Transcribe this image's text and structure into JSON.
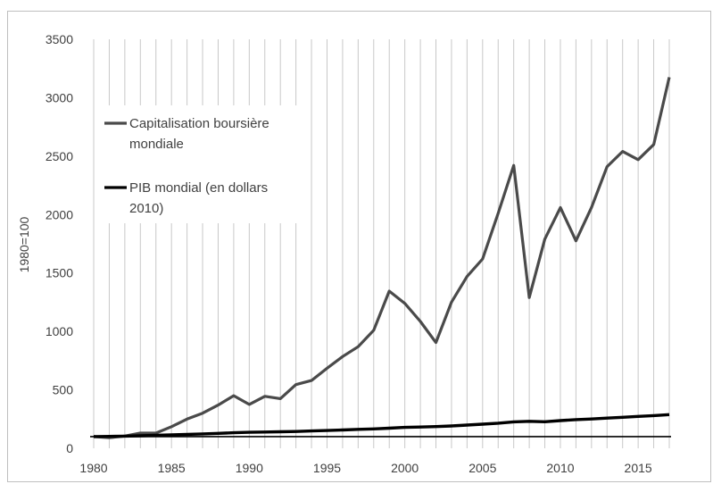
{
  "chart_data": {
    "type": "line",
    "title": "",
    "xlabel": "",
    "ylabel": "1980=100",
    "xlim": [
      1980,
      2017
    ],
    "ylim": [
      0,
      3500
    ],
    "xticks": [
      1980,
      1985,
      1990,
      1995,
      2000,
      2005,
      2010,
      2015
    ],
    "yticks": [
      0,
      500,
      1000,
      1500,
      2000,
      2500,
      3000,
      3500
    ],
    "grid": "vertical-yearly",
    "legend_position": "top-left",
    "x": [
      1980,
      1981,
      1982,
      1983,
      1984,
      1985,
      1986,
      1987,
      1988,
      1989,
      1990,
      1991,
      1992,
      1993,
      1994,
      1995,
      1996,
      1997,
      1998,
      1999,
      2000,
      2001,
      2002,
      2003,
      2004,
      2005,
      2006,
      2007,
      2008,
      2009,
      2010,
      2011,
      2012,
      2013,
      2014,
      2015,
      2016,
      2017
    ],
    "series": [
      {
        "name_lines": [
          "Capitalisation boursière",
          "mondiale"
        ],
        "color": "#4a4a4a",
        "values": [
          100,
          90,
          105,
          130,
          130,
          185,
          250,
          300,
          370,
          450,
          375,
          445,
          425,
          545,
          580,
          685,
          785,
          870,
          1010,
          1345,
          1240,
          1085,
          905,
          1250,
          1470,
          1620,
          2010,
          2420,
          1290,
          1790,
          2060,
          1775,
          2060,
          2410,
          2540,
          2470,
          2600,
          3175
        ]
      },
      {
        "name_lines": [
          "PIB mondial (en dollars",
          "2010)"
        ],
        "color": "#000000",
        "values": [
          100,
          102,
          104,
          107,
          111,
          115,
          119,
          123,
          128,
          133,
          137,
          139,
          141,
          144,
          148,
          152,
          157,
          162,
          166,
          172,
          179,
          182,
          186,
          191,
          199,
          206,
          215,
          226,
          231,
          227,
          237,
          245,
          251,
          258,
          265,
          273,
          280,
          288
        ]
      }
    ]
  }
}
